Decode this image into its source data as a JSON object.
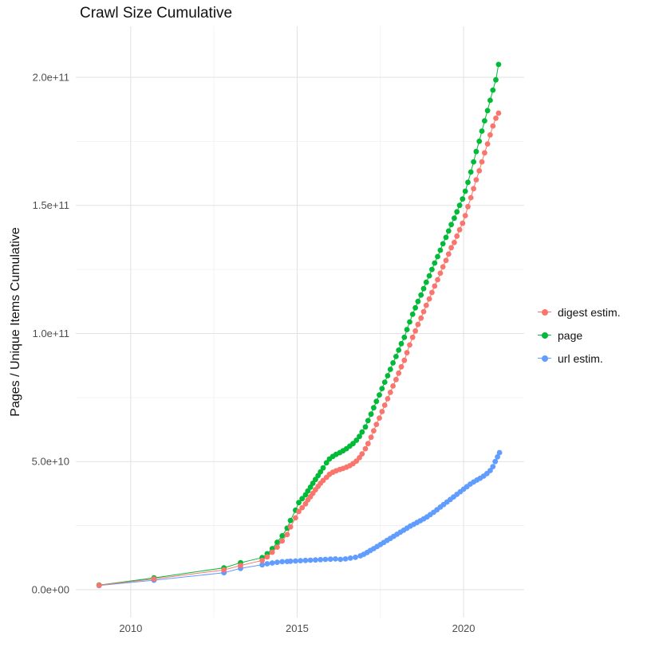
{
  "chart_data": {
    "type": "line",
    "title": "Crawl Size Cumulative",
    "xlabel": "",
    "ylabel": "Pages / Unique Items Cumulative",
    "xlim": [
      2008.35,
      2021.82
    ],
    "ylim": [
      -10900000000.0,
      219900000000.0
    ],
    "legend_position": "right",
    "grid": "on",
    "grid_major_color": "#e2e2e2",
    "grid_minor_color": "#f0f0f0",
    "tick_label_color": "#4d4d4d",
    "background_color": "#ffffff",
    "x_ticks": [
      {
        "value": 2010,
        "label": "2010"
      },
      {
        "value": 2015,
        "label": "2015"
      },
      {
        "value": 2020,
        "label": "2020"
      }
    ],
    "x_minor_ticks": [
      2012.5,
      2017.5
    ],
    "y_ticks": [
      {
        "value": 0,
        "label": "0.0e+00"
      },
      {
        "value": 50000000000.0,
        "label": "5.0e+10"
      },
      {
        "value": 100000000000.0,
        "label": "1.0e+11"
      },
      {
        "value": 150000000000.0,
        "label": "1.5e+11"
      },
      {
        "value": 200000000000.0,
        "label": "2.0e+11"
      }
    ],
    "y_minor_ticks": [
      25000000000.0,
      75000000000.0,
      125000000000.0,
      175000000000.0
    ],
    "series": [
      {
        "name": "digest estim.",
        "color": "#F8766D",
        "points": [
          [
            2009.05,
            1700000000.0
          ],
          [
            2010.7,
            4200000000.0
          ],
          [
            2012.8,
            7700000000.0
          ],
          [
            2013.3,
            9400000000.0
          ],
          [
            2013.95,
            11400000000.0
          ],
          [
            2014.1,
            12800000000.0
          ],
          [
            2014.25,
            14600000000.0
          ],
          [
            2014.4,
            16600000000.0
          ],
          [
            2014.55,
            19000000000.0
          ],
          [
            2014.7,
            21500000000.0
          ],
          [
            2014.8,
            24500000000.0
          ],
          [
            2014.95,
            28000000000.0
          ],
          [
            2015.05,
            30500000000.0
          ],
          [
            2015.15,
            32000000000.0
          ],
          [
            2015.25,
            33500000000.0
          ],
          [
            2015.32,
            35000000000.0
          ],
          [
            2015.4,
            36300000000.0
          ],
          [
            2015.47,
            37600000000.0
          ],
          [
            2015.55,
            39000000000.0
          ],
          [
            2015.63,
            40300000000.0
          ],
          [
            2015.7,
            41500000000.0
          ],
          [
            2015.78,
            42600000000.0
          ],
          [
            2015.88,
            43800000000.0
          ],
          [
            2015.97,
            45000000000.0
          ],
          [
            2016.07,
            45800000000.0
          ],
          [
            2016.17,
            46400000000.0
          ],
          [
            2016.28,
            46900000000.0
          ],
          [
            2016.38,
            47300000000.0
          ],
          [
            2016.48,
            47800000000.0
          ],
          [
            2016.58,
            48400000000.0
          ],
          [
            2016.68,
            49200000000.0
          ],
          [
            2016.78,
            50200000000.0
          ],
          [
            2016.87,
            51500000000.0
          ],
          [
            2016.95,
            53000000000.0
          ],
          [
            2017.05,
            55000000000.0
          ],
          [
            2017.13,
            57000000000.0
          ],
          [
            2017.22,
            59500000000.0
          ],
          [
            2017.3,
            62000000000.0
          ],
          [
            2017.38,
            64500000000.0
          ],
          [
            2017.47,
            67000000000.0
          ],
          [
            2017.55,
            69500000000.0
          ],
          [
            2017.63,
            72000000000.0
          ],
          [
            2017.72,
            74500000000.0
          ],
          [
            2017.8,
            77000000000.0
          ],
          [
            2017.88,
            79500000000.0
          ],
          [
            2017.97,
            82000000000.0
          ],
          [
            2018.05,
            84500000000.0
          ],
          [
            2018.13,
            87000000000.0
          ],
          [
            2018.22,
            89500000000.0
          ],
          [
            2018.3,
            92500000000.0
          ],
          [
            2018.38,
            95500000000.0
          ],
          [
            2018.47,
            98500000000.0
          ],
          [
            2018.55,
            101000000000.0
          ],
          [
            2018.63,
            103500000000.0
          ],
          [
            2018.72,
            106000000000.0
          ],
          [
            2018.8,
            108500000000.0
          ],
          [
            2018.88,
            111000000000.0
          ],
          [
            2018.97,
            113500000000.0
          ],
          [
            2019.05,
            116000000000.0
          ],
          [
            2019.13,
            118500000000.0
          ],
          [
            2019.22,
            121000000000.0
          ],
          [
            2019.3,
            123500000000.0
          ],
          [
            2019.38,
            126000000000.0
          ],
          [
            2019.47,
            128500000000.0
          ],
          [
            2019.55,
            131000000000.0
          ],
          [
            2019.63,
            133500000000.0
          ],
          [
            2019.72,
            135500000000.0
          ],
          [
            2019.8,
            138000000000.0
          ],
          [
            2019.88,
            140500000000.0
          ],
          [
            2019.97,
            143000000000.0
          ],
          [
            2020.05,
            146000000000.0
          ],
          [
            2020.13,
            149500000000.0
          ],
          [
            2020.22,
            153000000000.0
          ],
          [
            2020.3,
            156500000000.0
          ],
          [
            2020.38,
            160000000000.0
          ],
          [
            2020.47,
            163500000000.0
          ],
          [
            2020.55,
            167000000000.0
          ],
          [
            2020.63,
            170500000000.0
          ],
          [
            2020.72,
            174000000000.0
          ],
          [
            2020.8,
            177500000000.0
          ],
          [
            2020.88,
            181000000000.0
          ],
          [
            2020.97,
            184000000000.0
          ],
          [
            2021.05,
            186000000000.0
          ]
        ]
      },
      {
        "name": "page",
        "color": "#00BA38",
        "points": [
          [
            2009.05,
            1800000000.0
          ],
          [
            2010.7,
            4600000000.0
          ],
          [
            2012.8,
            8500000000.0
          ],
          [
            2013.3,
            10500000000.0
          ],
          [
            2013.95,
            12500000000.0
          ],
          [
            2014.1,
            14000000000.0
          ],
          [
            2014.25,
            16000000000.0
          ],
          [
            2014.4,
            18500000000.0
          ],
          [
            2014.55,
            21000000000.0
          ],
          [
            2014.7,
            24000000000.0
          ],
          [
            2014.8,
            27000000000.0
          ],
          [
            2014.95,
            31000000000.0
          ],
          [
            2015.05,
            34000000000.0
          ],
          [
            2015.15,
            35500000000.0
          ],
          [
            2015.25,
            37000000000.0
          ],
          [
            2015.32,
            38500000000.0
          ],
          [
            2015.4,
            40000000000.0
          ],
          [
            2015.47,
            41500000000.0
          ],
          [
            2015.55,
            43000000000.0
          ],
          [
            2015.63,
            44500000000.0
          ],
          [
            2015.7,
            46000000000.0
          ],
          [
            2015.78,
            47500000000.0
          ],
          [
            2015.88,
            49500000000.0
          ],
          [
            2015.97,
            51000000000.0
          ],
          [
            2016.07,
            52000000000.0
          ],
          [
            2016.17,
            52800000000.0
          ],
          [
            2016.28,
            53500000000.0
          ],
          [
            2016.38,
            54200000000.0
          ],
          [
            2016.48,
            55000000000.0
          ],
          [
            2016.58,
            56000000000.0
          ],
          [
            2016.68,
            57000000000.0
          ],
          [
            2016.78,
            58300000000.0
          ],
          [
            2016.87,
            59800000000.0
          ],
          [
            2016.95,
            61500000000.0
          ],
          [
            2017.05,
            63500000000.0
          ],
          [
            2017.13,
            66000000000.0
          ],
          [
            2017.22,
            68500000000.0
          ],
          [
            2017.3,
            71000000000.0
          ],
          [
            2017.38,
            73500000000.0
          ],
          [
            2017.47,
            76000000000.0
          ],
          [
            2017.55,
            78500000000.0
          ],
          [
            2017.63,
            81000000000.0
          ],
          [
            2017.72,
            83500000000.0
          ],
          [
            2017.8,
            86000000000.0
          ],
          [
            2017.88,
            88500000000.0
          ],
          [
            2017.97,
            91000000000.0
          ],
          [
            2018.05,
            93500000000.0
          ],
          [
            2018.13,
            96000000000.0
          ],
          [
            2018.22,
            98500000000.0
          ],
          [
            2018.3,
            101500000000.0
          ],
          [
            2018.38,
            104500000000.0
          ],
          [
            2018.47,
            107500000000.0
          ],
          [
            2018.55,
            110000000000.0
          ],
          [
            2018.63,
            112500000000.0
          ],
          [
            2018.72,
            115000000000.0
          ],
          [
            2018.8,
            117500000000.0
          ],
          [
            2018.88,
            120000000000.0
          ],
          [
            2018.97,
            122500000000.0
          ],
          [
            2019.05,
            125000000000.0
          ],
          [
            2019.13,
            127500000000.0
          ],
          [
            2019.22,
            130000000000.0
          ],
          [
            2019.3,
            132500000000.0
          ],
          [
            2019.38,
            135000000000.0
          ],
          [
            2019.47,
            137500000000.0
          ],
          [
            2019.55,
            140000000000.0
          ],
          [
            2019.63,
            142500000000.0
          ],
          [
            2019.72,
            145000000000.0
          ],
          [
            2019.8,
            147500000000.0
          ],
          [
            2019.88,
            150000000000.0
          ],
          [
            2019.97,
            152500000000.0
          ],
          [
            2020.05,
            155500000000.0
          ],
          [
            2020.13,
            159000000000.0
          ],
          [
            2020.22,
            163000000000.0
          ],
          [
            2020.3,
            167000000000.0
          ],
          [
            2020.38,
            171000000000.0
          ],
          [
            2020.47,
            175000000000.0
          ],
          [
            2020.55,
            179000000000.0
          ],
          [
            2020.63,
            183000000000.0
          ],
          [
            2020.72,
            187000000000.0
          ],
          [
            2020.8,
            191000000000.0
          ],
          [
            2020.88,
            195000000000.0
          ],
          [
            2020.97,
            199000000000.0
          ],
          [
            2021.05,
            205000000000.0
          ]
        ]
      },
      {
        "name": "url estim.",
        "color": "#619CFF",
        "points": [
          [
            2009.05,
            1600000000.0
          ],
          [
            2010.7,
            3700000000.0
          ],
          [
            2012.8,
            6600000000.0
          ],
          [
            2013.3,
            8300000000.0
          ],
          [
            2013.95,
            9700000000.0
          ],
          [
            2014.1,
            10100000000.0
          ],
          [
            2014.25,
            10400000000.0
          ],
          [
            2014.4,
            10700000000.0
          ],
          [
            2014.55,
            10900000000.0
          ],
          [
            2014.7,
            11000000000.0
          ],
          [
            2014.8,
            11100000000.0
          ],
          [
            2014.95,
            11200000000.0
          ],
          [
            2015.1,
            11300000000.0
          ],
          [
            2015.25,
            11400000000.0
          ],
          [
            2015.4,
            11500000000.0
          ],
          [
            2015.55,
            11600000000.0
          ],
          [
            2015.7,
            11700000000.0
          ],
          [
            2015.85,
            11800000000.0
          ],
          [
            2016.0,
            11900000000.0
          ],
          [
            2016.15,
            12000000000.0
          ],
          [
            2016.3,
            11800000000.0
          ],
          [
            2016.45,
            12000000000.0
          ],
          [
            2016.6,
            12300000000.0
          ],
          [
            2016.75,
            12600000000.0
          ],
          [
            2016.9,
            13200000000.0
          ],
          [
            2017.0,
            13800000000.0
          ],
          [
            2017.1,
            14500000000.0
          ],
          [
            2017.2,
            15300000000.0
          ],
          [
            2017.3,
            16000000000.0
          ],
          [
            2017.4,
            16800000000.0
          ],
          [
            2017.5,
            17600000000.0
          ],
          [
            2017.6,
            18400000000.0
          ],
          [
            2017.7,
            19200000000.0
          ],
          [
            2017.8,
            20000000000.0
          ],
          [
            2017.9,
            20800000000.0
          ],
          [
            2018.0,
            21600000000.0
          ],
          [
            2018.1,
            22400000000.0
          ],
          [
            2018.2,
            23200000000.0
          ],
          [
            2018.3,
            24000000000.0
          ],
          [
            2018.4,
            24800000000.0
          ],
          [
            2018.5,
            25500000000.0
          ],
          [
            2018.6,
            26200000000.0
          ],
          [
            2018.7,
            26900000000.0
          ],
          [
            2018.8,
            27600000000.0
          ],
          [
            2018.9,
            28400000000.0
          ],
          [
            2019.0,
            29300000000.0
          ],
          [
            2019.1,
            30200000000.0
          ],
          [
            2019.2,
            31200000000.0
          ],
          [
            2019.3,
            32200000000.0
          ],
          [
            2019.4,
            33200000000.0
          ],
          [
            2019.5,
            34200000000.0
          ],
          [
            2019.6,
            35200000000.0
          ],
          [
            2019.7,
            36200000000.0
          ],
          [
            2019.8,
            37200000000.0
          ],
          [
            2019.9,
            38200000000.0
          ],
          [
            2020.0,
            39200000000.0
          ],
          [
            2020.1,
            40200000000.0
          ],
          [
            2020.2,
            41200000000.0
          ],
          [
            2020.3,
            42000000000.0
          ],
          [
            2020.4,
            42800000000.0
          ],
          [
            2020.5,
            43500000000.0
          ],
          [
            2020.6,
            44300000000.0
          ],
          [
            2020.7,
            45300000000.0
          ],
          [
            2020.8,
            46500000000.0
          ],
          [
            2020.88,
            48000000000.0
          ],
          [
            2020.95,
            50000000000.0
          ],
          [
            2021.02,
            51800000000.0
          ],
          [
            2021.08,
            53500000000.0
          ]
        ]
      }
    ]
  }
}
